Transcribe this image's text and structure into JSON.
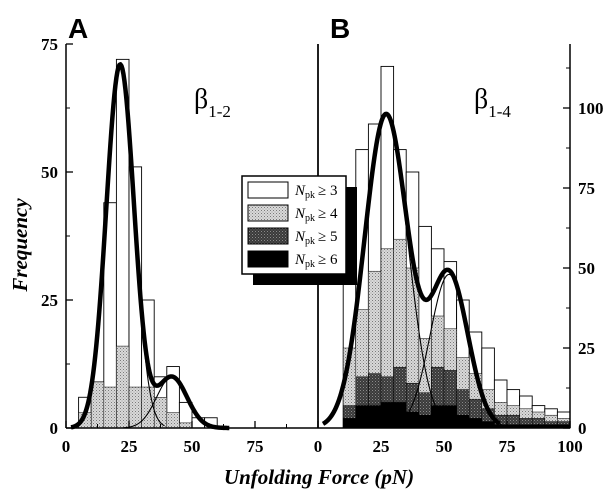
{
  "chart_data": [
    {
      "type": "bar",
      "panel_label": "A",
      "annotation": {
        "symbol": "β",
        "subscript": "1-2"
      },
      "xlabel": "Unfolding Force (pN)",
      "ylabel": "Frequency",
      "xlim": [
        0,
        100
      ],
      "ylim": [
        0,
        75
      ],
      "x_ticks": [
        0,
        25,
        50,
        75
      ],
      "y_ticks": [
        0,
        25,
        50,
        75
      ],
      "bin_width": 5,
      "series": [
        {
          "name": "N_pk ≥ 3",
          "style": "white",
          "bin_start": [
            5,
            10,
            15,
            20,
            25,
            30,
            35,
            40,
            45,
            50,
            55
          ],
          "values": [
            6,
            9,
            44,
            72,
            51,
            25,
            10,
            12,
            5,
            2,
            2
          ]
        },
        {
          "name": "N_pk ≥ 4",
          "style": "light-dotted",
          "bin_start": [
            5,
            10,
            15,
            20,
            25,
            30,
            35,
            40,
            45
          ],
          "values": [
            3,
            9,
            8,
            16,
            8,
            8,
            6,
            3,
            1
          ]
        }
      ],
      "fits": {
        "components": [
          {
            "mean": 21.5,
            "sigma": 5.5,
            "amplitude": 71
          },
          {
            "mean": 42,
            "sigma": 6,
            "amplitude": 10
          }
        ],
        "x_range": [
          2,
          65
        ]
      }
    },
    {
      "type": "bar",
      "panel_label": "B",
      "annotation": {
        "symbol": "β",
        "subscript": "1-4"
      },
      "xlim": [
        0,
        100
      ],
      "ylim": [
        0,
        120
      ],
      "x_ticks": [
        0,
        25,
        50,
        75,
        100
      ],
      "y_ticks": [
        0,
        25,
        50,
        75,
        100
      ],
      "y_axis_side": "right",
      "bin_width": 5,
      "series": [
        {
          "name": "N_pk ≥ 3",
          "style": "white",
          "bin_start": [
            10,
            15,
            20,
            25,
            30,
            35,
            40,
            45,
            50,
            55,
            60,
            65,
            70,
            75,
            80,
            85,
            90,
            95
          ],
          "values": [
            53,
            87,
            95,
            113,
            87,
            80,
            63,
            56,
            52,
            40,
            30,
            25,
            15,
            12,
            10,
            7,
            6,
            5
          ]
        },
        {
          "name": "N_pk ≥ 4",
          "style": "light-dotted",
          "bin_start": [
            10,
            15,
            20,
            25,
            30,
            35,
            40,
            45,
            50,
            55,
            60,
            65,
            70,
            75,
            80,
            85,
            90,
            95
          ],
          "values": [
            25,
            37,
            49,
            56,
            59,
            50,
            28,
            35,
            31,
            22,
            17,
            12,
            8,
            7,
            6,
            5,
            4,
            3
          ]
        },
        {
          "name": "N_pk ≥ 5",
          "style": "dark-dotted",
          "bin_start": [
            10,
            15,
            20,
            25,
            30,
            35,
            40,
            45,
            50,
            55,
            60,
            65,
            70,
            75,
            80,
            85,
            90,
            95
          ],
          "values": [
            7,
            16,
            17,
            16,
            19,
            14,
            11,
            19,
            18,
            12,
            9,
            6,
            4,
            4,
            3,
            3,
            2,
            2
          ]
        },
        {
          "name": "N_pk ≥ 6",
          "style": "black",
          "bin_start": [
            10,
            15,
            20,
            25,
            30,
            35,
            40,
            45,
            50,
            55,
            60,
            65,
            70,
            75,
            80,
            85,
            90,
            95
          ],
          "values": [
            3,
            7,
            7,
            8,
            8,
            5,
            4,
            7,
            7,
            4,
            3,
            2,
            1,
            1,
            1,
            1,
            1,
            1
          ]
        }
      ],
      "fits": {
        "components": [
          {
            "mean": 27,
            "sigma": 8.5,
            "amplitude": 98
          },
          {
            "mean": 52,
            "sigma": 7.5,
            "amplitude": 48
          }
        ],
        "x_range": [
          2,
          72
        ]
      }
    }
  ],
  "legend": {
    "placement": "center",
    "symbol": "N",
    "subscript": "pk",
    "entries": [
      {
        "style": "white",
        "threshold": "≥ 3"
      },
      {
        "style": "light-dotted",
        "threshold": "≥ 4"
      },
      {
        "style": "dark-dotted",
        "threshold": "≥ 5"
      },
      {
        "style": "black",
        "threshold": "≥ 6"
      }
    ]
  }
}
